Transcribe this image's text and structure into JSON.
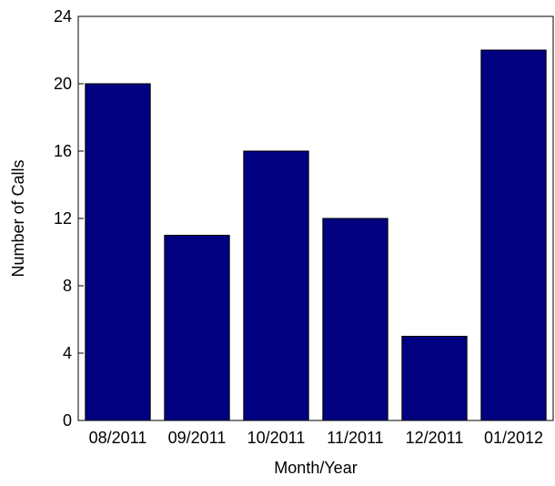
{
  "chart_data": {
    "type": "bar",
    "title": "",
    "xlabel": "Month/Year",
    "ylabel": "Number of Calls",
    "categories": [
      "08/2011",
      "09/2011",
      "10/2011",
      "11/2011",
      "12/2011",
      "01/2012"
    ],
    "values": [
      20,
      11,
      16,
      12,
      5,
      22
    ],
    "ylim": [
      0,
      24
    ],
    "yticks": [
      0,
      4,
      8,
      12,
      16,
      20,
      24
    ],
    "bar_color": "#000080",
    "grid": false,
    "legend": "none"
  }
}
